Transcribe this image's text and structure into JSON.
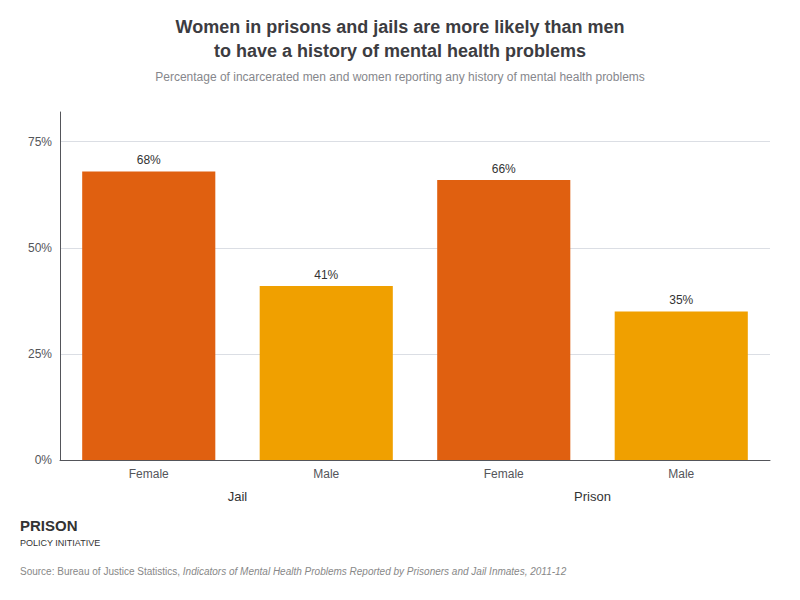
{
  "chart_data": {
    "type": "bar",
    "title": "Women in prisons and jails are more likely than men\nto have a history of mental health problems",
    "subtitle": "Percentage of incarcerated men and women reporting any history of mental health problems",
    "categories": [
      "Female",
      "Male",
      "Female",
      "Male"
    ],
    "group_labels": [
      "Jail",
      "Prison"
    ],
    "values": [
      68,
      41,
      66,
      35
    ],
    "value_labels": [
      "68%",
      "41%",
      "66%",
      "35%"
    ],
    "colors": [
      "#E06010",
      "#F0A000",
      "#E06010",
      "#F0A000"
    ],
    "data_labels": true,
    "ylim": [
      0,
      82
    ],
    "yticks": [
      {
        "value": 0,
        "label": "0%"
      },
      {
        "value": 25,
        "label": "25%"
      },
      {
        "value": 50,
        "label": "50%"
      },
      {
        "value": 75,
        "label": "75%"
      }
    ],
    "grid": true,
    "annotations": [
      "PRISON",
      "POLICY INITIATIVE"
    ],
    "source": [
      "Source: Bureau of Justice Statistics, ",
      "Indicators of Mental Health Problems Reported by Prisoners and Jail Inmates, 2011-12"
    ]
  }
}
